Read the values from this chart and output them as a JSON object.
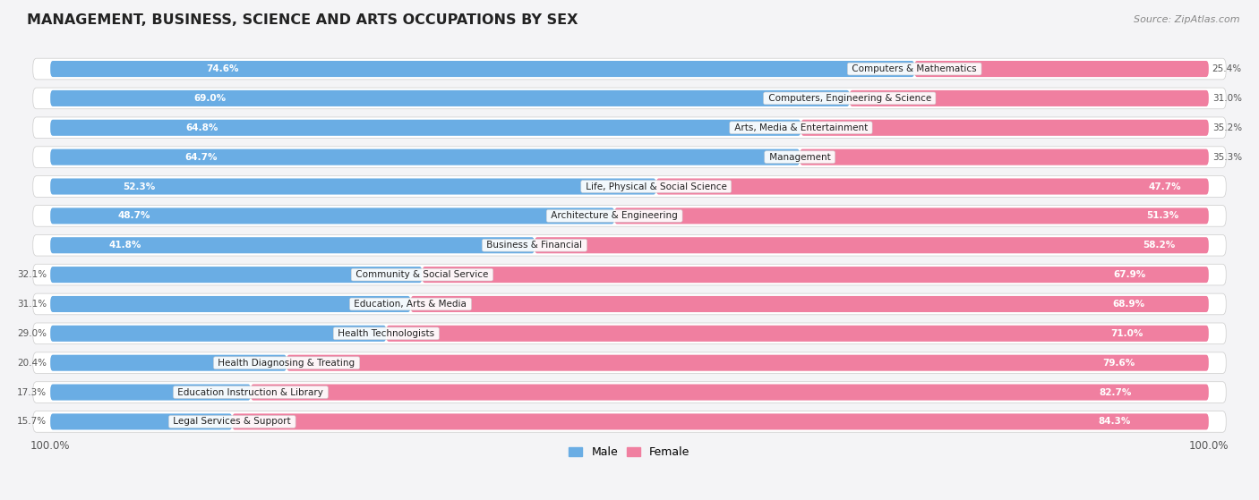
{
  "title": "MANAGEMENT, BUSINESS, SCIENCE AND ARTS OCCUPATIONS BY SEX",
  "source": "Source: ZipAtlas.com",
  "categories": [
    "Computers & Mathematics",
    "Computers, Engineering & Science",
    "Arts, Media & Entertainment",
    "Management",
    "Life, Physical & Social Science",
    "Architecture & Engineering",
    "Business & Financial",
    "Community & Social Service",
    "Education, Arts & Media",
    "Health Technologists",
    "Health Diagnosing & Treating",
    "Education Instruction & Library",
    "Legal Services & Support"
  ],
  "male_pct": [
    74.6,
    69.0,
    64.8,
    64.7,
    52.3,
    48.7,
    41.8,
    32.1,
    31.1,
    29.0,
    20.4,
    17.3,
    15.7
  ],
  "female_pct": [
    25.4,
    31.0,
    35.2,
    35.3,
    47.7,
    51.3,
    58.2,
    67.9,
    68.9,
    71.0,
    79.6,
    82.7,
    84.3
  ],
  "male_color": "#6aade4",
  "female_color": "#f07fa0",
  "row_bg_color": "#e8e8ee",
  "bar_inner_bg": "#f5f5f8",
  "title_fontsize": 11.5,
  "label_fontsize": 7.5,
  "category_fontsize": 7.5,
  "legend_fontsize": 9,
  "source_fontsize": 8
}
